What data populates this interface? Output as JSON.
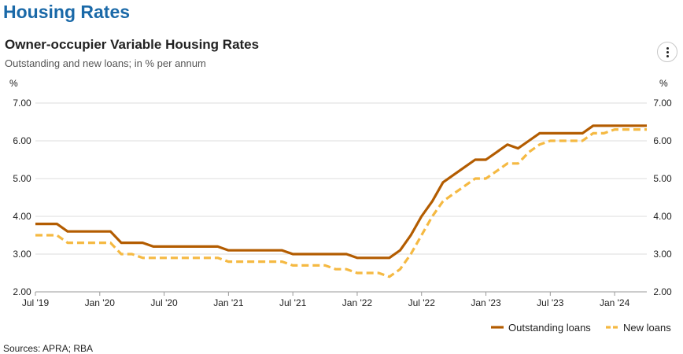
{
  "header": {
    "page_title": "Housing Rates",
    "chart_title": "Owner-occupier Variable Housing Rates",
    "chart_subtitle": "Outstanding and new loans; in % per annum",
    "menu_icon": "vertical-ellipsis-icon"
  },
  "footer": {
    "sources": "Sources: APRA; RBA"
  },
  "colors": {
    "outstanding": "#b35c00",
    "new": "#f5b942",
    "grid": "#dddddd",
    "axis": "#999999",
    "text": "#222222"
  },
  "chart_data": {
    "type": "line",
    "title": "Owner-occupier Variable Housing Rates",
    "subtitle": "Outstanding and new loans; in % per annum",
    "yunit_left": "%",
    "yunit_right": "%",
    "ylim": [
      2.0,
      7.0
    ],
    "yticks": [
      2,
      3,
      4,
      5,
      6,
      7
    ],
    "ytick_labels": [
      "2.00",
      "3.00",
      "4.00",
      "5.00",
      "6.00",
      "7.00"
    ],
    "xlim": [
      "2019-07",
      "2024-04"
    ],
    "xticks": [
      "2019-07",
      "2020-01",
      "2020-07",
      "2021-01",
      "2021-07",
      "2022-01",
      "2022-07",
      "2023-01",
      "2023-07",
      "2024-01"
    ],
    "xtick_labels": [
      "Jul '19",
      "Jan '20",
      "Jul '20",
      "Jan '21",
      "Jul '21",
      "Jan '22",
      "Jul '22",
      "Jan '23",
      "Jul '23",
      "Jan '24"
    ],
    "grid": true,
    "legend_position": "bottom-right",
    "x": [
      "2019-07",
      "2019-08",
      "2019-09",
      "2019-10",
      "2019-11",
      "2019-12",
      "2020-01",
      "2020-02",
      "2020-03",
      "2020-04",
      "2020-05",
      "2020-06",
      "2020-07",
      "2020-08",
      "2020-09",
      "2020-10",
      "2020-11",
      "2020-12",
      "2021-01",
      "2021-02",
      "2021-03",
      "2021-04",
      "2021-05",
      "2021-06",
      "2021-07",
      "2021-08",
      "2021-09",
      "2021-10",
      "2021-11",
      "2021-12",
      "2022-01",
      "2022-02",
      "2022-03",
      "2022-04",
      "2022-05",
      "2022-06",
      "2022-07",
      "2022-08",
      "2022-09",
      "2022-10",
      "2022-11",
      "2022-12",
      "2023-01",
      "2023-02",
      "2023-03",
      "2023-04",
      "2023-05",
      "2023-06",
      "2023-07",
      "2023-08",
      "2023-09",
      "2023-10",
      "2023-11",
      "2023-12",
      "2024-01",
      "2024-02",
      "2024-03",
      "2024-04"
    ],
    "series": [
      {
        "name": "Outstanding loans",
        "style": "solid",
        "values": [
          3.8,
          3.8,
          3.8,
          3.6,
          3.6,
          3.6,
          3.6,
          3.6,
          3.3,
          3.3,
          3.3,
          3.2,
          3.2,
          3.2,
          3.2,
          3.2,
          3.2,
          3.2,
          3.1,
          3.1,
          3.1,
          3.1,
          3.1,
          3.1,
          3.0,
          3.0,
          3.0,
          3.0,
          3.0,
          3.0,
          2.9,
          2.9,
          2.9,
          2.9,
          3.1,
          3.5,
          4.0,
          4.4,
          4.9,
          5.1,
          5.3,
          5.5,
          5.5,
          5.7,
          5.9,
          5.8,
          6.0,
          6.2,
          6.2,
          6.2,
          6.2,
          6.2,
          6.4,
          6.4,
          6.4,
          6.4,
          6.4,
          6.4
        ]
      },
      {
        "name": "New loans",
        "style": "dashed",
        "values": [
          3.5,
          3.5,
          3.5,
          3.3,
          3.3,
          3.3,
          3.3,
          3.3,
          3.0,
          3.0,
          2.9,
          2.9,
          2.9,
          2.9,
          2.9,
          2.9,
          2.9,
          2.9,
          2.8,
          2.8,
          2.8,
          2.8,
          2.8,
          2.8,
          2.7,
          2.7,
          2.7,
          2.7,
          2.6,
          2.6,
          2.5,
          2.5,
          2.5,
          2.4,
          2.6,
          3.0,
          3.5,
          4.0,
          4.4,
          4.6,
          4.8,
          5.0,
          5.0,
          5.2,
          5.4,
          5.4,
          5.7,
          5.9,
          6.0,
          6.0,
          6.0,
          6.0,
          6.2,
          6.2,
          6.3,
          6.3,
          6.3,
          6.3
        ]
      }
    ]
  }
}
